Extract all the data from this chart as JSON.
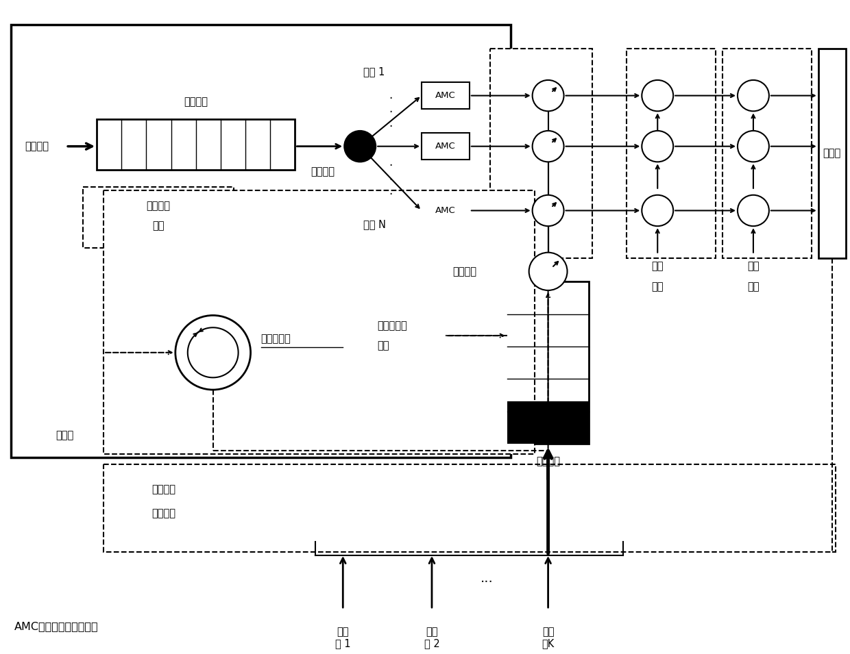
{
  "fig_width": 12.4,
  "fig_height": 9.55,
  "background_color": "#ffffff",
  "caption": "AMC：自适应调制和编码",
  "transmitter_label": "发射机",
  "receiver_label": "接收机",
  "buffer_label": "缓存容量",
  "data_arrival_label": "数据到达",
  "data_transfer_label": "数据传输",
  "buffer_overflow_label1": "缓存溢出",
  "buffer_overflow_label2": "约束",
  "power_controller_label": "功率控制器",
  "channel1_label": "信道 1",
  "channelN_label": "信道 N",
  "power_alloc_label": "功率分配",
  "battery_stability_label1": "电池平稳性",
  "battery_stability_label2": "约束",
  "energy_harvest_label": "能量收集",
  "channel_fading_label1": "信道",
  "channel_fading_label2": "衰落",
  "additive_noise_label1": "加性",
  "additive_noise_label2": "噪声",
  "channel_state_label1": "信道状态",
  "channel_state_label2": "信息反馈",
  "energy_source1": "能量\n源 1",
  "energy_source2": "能量\n源 2",
  "energy_sourceK": "能量\n源K"
}
